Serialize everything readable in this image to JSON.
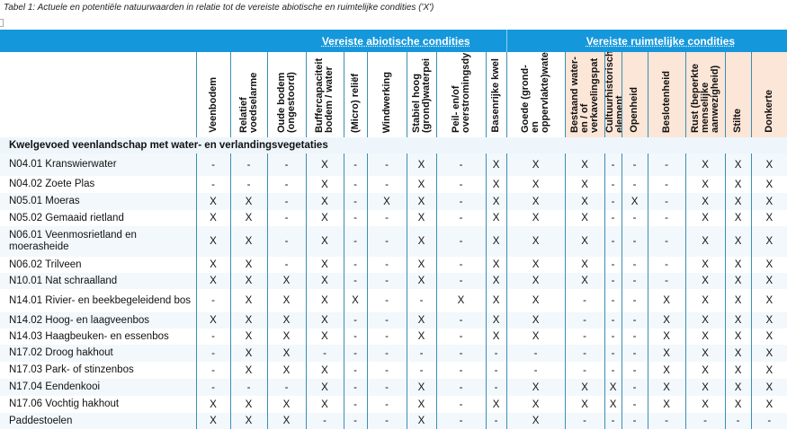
{
  "caption": "Tabel 1: Actuele en potentiële natuurwaarden in relatie tot de vereiste abiotische en ruimtelijke condities ('X')",
  "groups": {
    "abiotic": "Vereiste abiotische condities",
    "spatial": "Vereiste ruimtelijke condities"
  },
  "columns": [
    {
      "label": "Veenbodem",
      "group": "abiotic"
    },
    {
      "label": "Relatief voedselarme",
      "group": "abiotic"
    },
    {
      "label": "Oude bodem (ongestoord)",
      "group": "abiotic"
    },
    {
      "label": "Buffercapaciteit bodem / water",
      "group": "abiotic"
    },
    {
      "label": "(Micro) reliëf",
      "group": "abiotic"
    },
    {
      "label": "Windwerking",
      "group": "abiotic"
    },
    {
      "label": "Stabiel hoog (grond)waterpei",
      "group": "abiotic"
    },
    {
      "label": "Peil- en/of overstromingsdynamiek",
      "group": "abiotic"
    },
    {
      "label": "Basenrijke kwel",
      "group": "abiotic"
    },
    {
      "label": "Goede (grond- en oppervlakte)waterkwaliteit",
      "group": "abiotic"
    },
    {
      "label": "Bestaand water- en / of verkavelingspat",
      "group": "spatial"
    },
    {
      "label": "Cultuurhistorisch element (eendenkooi)",
      "group": "spatial"
    },
    {
      "label": "Openheid",
      "group": "spatial"
    },
    {
      "label": "Beslotenheid",
      "group": "spatial"
    },
    {
      "label": "Rust (beperkte menselijke aanwezigheid)",
      "group": "spatial"
    },
    {
      "label": "Stilte",
      "group": "spatial"
    },
    {
      "label": "Donkerte",
      "group": "spatial"
    }
  ],
  "section": "Kwelgevoed veenlandschap met water- en verlandingsvegetaties",
  "rows": [
    {
      "name": "N04.01 Kranswierwater",
      "values": [
        "-",
        "-",
        "-",
        "X",
        "-",
        "-",
        "X",
        "-",
        "X",
        "X",
        "X",
        "-",
        "-",
        "-",
        "X",
        "X",
        "X"
      ]
    },
    {
      "name": "N04.02 Zoete Plas",
      "values": [
        "-",
        "-",
        "-",
        "X",
        "-",
        "-",
        "X",
        "-",
        "X",
        "X",
        "X",
        "-",
        "-",
        "-",
        "X",
        "X",
        "X"
      ]
    },
    {
      "name": "N05.01 Moeras",
      "values": [
        "X",
        "X",
        "-",
        "X",
        "-",
        "X",
        "X",
        "-",
        "X",
        "X",
        "X",
        "-",
        "X",
        "-",
        "X",
        "X",
        "X"
      ]
    },
    {
      "name": "N05.02 Gemaaid rietland",
      "values": [
        "X",
        "X",
        "-",
        "X",
        "-",
        "-",
        "X",
        "-",
        "X",
        "X",
        "X",
        "-",
        "-",
        "-",
        "X",
        "X",
        "X"
      ]
    },
    {
      "name": "N06.01 Veenmosrietland en moerasheide",
      "values": [
        "X",
        "X",
        "-",
        "X",
        "-",
        "-",
        "X",
        "-",
        "X",
        "X",
        "X",
        "-",
        "-",
        "-",
        "X",
        "X",
        "X"
      ]
    },
    {
      "name": "N06.02 Trilveen",
      "values": [
        "X",
        "X",
        "-",
        "X",
        "-",
        "-",
        "X",
        "-",
        "X",
        "X",
        "X",
        "-",
        "-",
        "-",
        "X",
        "X",
        "X"
      ]
    },
    {
      "name": "N10.01 Nat schraalland",
      "values": [
        "X",
        "X",
        "X",
        "X",
        "-",
        "-",
        "X",
        "-",
        "X",
        "X",
        "X",
        "-",
        "-",
        "-",
        "X",
        "X",
        "X"
      ]
    },
    {
      "name": "N14.01 Rivier- en beekbegeleidend bos",
      "values": [
        "-",
        "X",
        "X",
        "X",
        "X",
        "-",
        "-",
        "X",
        "X",
        "X",
        "-",
        "-",
        "-",
        "X",
        "X",
        "X",
        "X"
      ]
    },
    {
      "name": "N14.02 Hoog- en laagveenbos",
      "values": [
        "X",
        "X",
        "X",
        "X",
        "-",
        "-",
        "X",
        "-",
        "X",
        "X",
        "-",
        "-",
        "-",
        "X",
        "X",
        "X",
        "X"
      ]
    },
    {
      "name": "N14.03 Haagbeuken- en essenbos",
      "values": [
        "-",
        "X",
        "X",
        "X",
        "-",
        "-",
        "X",
        "-",
        "X",
        "X",
        "-",
        "-",
        "-",
        "X",
        "X",
        "X",
        "X"
      ]
    },
    {
      "name": "N17.02 Droog hakhout",
      "values": [
        "-",
        "X",
        "X",
        "-",
        "-",
        "-",
        "-",
        "-",
        "-",
        "-",
        "-",
        "-",
        "-",
        "X",
        "X",
        "X",
        "X"
      ]
    },
    {
      "name": "N17.03 Park- of stinzenbos",
      "values": [
        "-",
        "X",
        "X",
        "X",
        "-",
        "-",
        "-",
        "-",
        "-",
        "-",
        "-",
        "-",
        "-",
        "X",
        "X",
        "X",
        "X"
      ]
    },
    {
      "name": "N17.04 Eendenkooi",
      "values": [
        "-",
        "-",
        "-",
        "X",
        "-",
        "-",
        "X",
        "-",
        "-",
        "X",
        "X",
        "X",
        "-",
        "X",
        "X",
        "X",
        "X"
      ]
    },
    {
      "name": "N17.06 Vochtig hakhout",
      "values": [
        "X",
        "X",
        "X",
        "X",
        "-",
        "-",
        "X",
        "-",
        "X",
        "X",
        "X",
        "X",
        "-",
        "X",
        "X",
        "X",
        "X"
      ]
    },
    {
      "name": "Paddestoelen",
      "values": [
        "X",
        "X",
        "X",
        "-",
        "-",
        "-",
        "X",
        "-",
        "-",
        "X",
        "-",
        "-",
        "-",
        "-",
        "-",
        "-",
        "-"
      ]
    }
  ]
}
